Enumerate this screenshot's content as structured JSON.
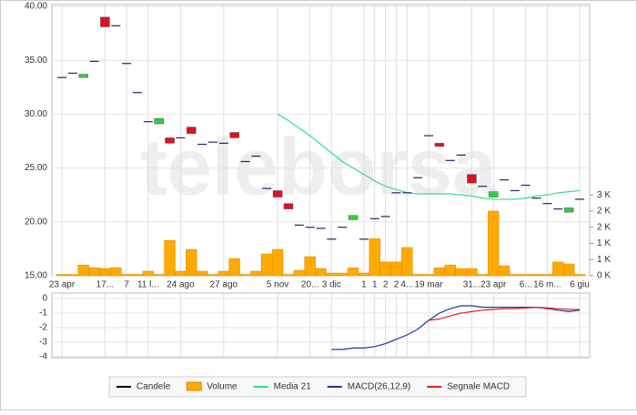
{
  "chart_data": [
    {
      "type": "candlestick",
      "watermark": "teleborsa",
      "categories": [
        "23 apr",
        null,
        null,
        null,
        "17...",
        null,
        "7",
        null,
        "11 l...",
        null,
        null,
        "24 ago",
        null,
        null,
        null,
        "27 ago",
        null,
        null,
        null,
        null,
        "5 nov",
        null,
        null,
        "20...",
        null,
        "3 dic",
        null,
        null,
        "1",
        "1",
        "2",
        "2",
        "4...",
        null,
        "19 mar",
        null,
        null,
        null,
        "31...",
        null,
        "23 apr",
        null,
        null,
        "6...",
        null,
        "16 m...",
        null,
        null,
        "6 giu"
      ],
      "ylim": [
        15,
        40
      ],
      "yticks": [
        {
          "value": 15,
          "label": "15.00"
        },
        {
          "value": 20,
          "label": "20.00"
        },
        {
          "value": 25,
          "label": "25.00"
        },
        {
          "value": 30,
          "label": "30.00"
        },
        {
          "value": 35,
          "label": "35.00"
        },
        {
          "value": 40,
          "label": "40.00"
        }
      ],
      "y2lim": [
        0,
        10000
      ],
      "y2ticks": [
        {
          "value": 0,
          "label": "0 K"
        },
        {
          "value": 600,
          "label": "1 K"
        },
        {
          "value": 1200,
          "label": "1 K"
        },
        {
          "value": 1800,
          "label": "2 K"
        },
        {
          "value": 2400,
          "label": "2 K"
        },
        {
          "value": 3000,
          "label": "3 K"
        }
      ],
      "grid": true,
      "up_color": "#33cc44",
      "down_color": "#dd1122",
      "series": [
        {
          "name": "Candele",
          "type": "candlestick",
          "color": "#1a2a66",
          "open": [
            33.4,
            33.8,
            33.4,
            34.9,
            39.0,
            38.2,
            34.7,
            32.0,
            29.3,
            29.1,
            27.8,
            27.8,
            28.8,
            27.2,
            27.4,
            27.3,
            28.3,
            25.6,
            26.1,
            23.1,
            22.9,
            21.7,
            19.7,
            19.5,
            19.4,
            18.4,
            19.5,
            20.2,
            18.4,
            20.3,
            20.5,
            22.7,
            22.7,
            24.1,
            28.0,
            27.3,
            25.7,
            26.2,
            24.4,
            23.3,
            22.3,
            23.9,
            22.9,
            23.4,
            22.2,
            21.7,
            21.2,
            20.9,
            22.1
          ],
          "close": [
            33.4,
            33.8,
            33.7,
            34.9,
            38.1,
            38.2,
            34.7,
            32.0,
            29.3,
            29.6,
            27.3,
            27.8,
            28.2,
            27.2,
            27.4,
            27.3,
            27.8,
            25.6,
            26.1,
            23.1,
            22.3,
            21.2,
            19.7,
            19.5,
            19.4,
            18.4,
            19.5,
            20.6,
            18.4,
            20.3,
            20.5,
            22.7,
            22.7,
            24.1,
            28.0,
            27.0,
            25.7,
            26.2,
            23.6,
            23.3,
            22.8,
            23.9,
            22.9,
            23.4,
            22.2,
            21.7,
            21.2,
            21.3,
            22.1
          ]
        },
        {
          "name": "Volume",
          "type": "bar",
          "axis": "y2",
          "color": "#ffaa00",
          "values": [
            50,
            50,
            400,
            300,
            270,
            300,
            50,
            50,
            170,
            50,
            1310,
            170,
            980,
            170,
            50,
            170,
            640,
            50,
            170,
            810,
            980,
            50,
            200,
            710,
            270,
            100,
            100,
            300,
            100,
            1380,
            510,
            510,
            1050,
            50,
            50,
            300,
            400,
            270,
            270,
            50,
            2400,
            370,
            50,
            50,
            50,
            50,
            510,
            440,
            50
          ]
        },
        {
          "name": "Media 21",
          "type": "line",
          "color": "#33dd88",
          "values": [
            null,
            null,
            null,
            null,
            null,
            null,
            null,
            null,
            null,
            null,
            null,
            null,
            null,
            null,
            null,
            null,
            null,
            null,
            null,
            null,
            30.0,
            29.4,
            28.7,
            28.0,
            27.2,
            26.4,
            25.6,
            25.0,
            24.4,
            23.8,
            23.3,
            23.0,
            22.7,
            22.6,
            22.6,
            22.6,
            22.6,
            22.5,
            22.4,
            22.2,
            22.1,
            22.1,
            22.1,
            22.2,
            22.4,
            22.5,
            22.7,
            22.8,
            22.9
          ]
        }
      ]
    },
    {
      "type": "line",
      "ylim": [
        -4,
        0
      ],
      "yticks": [
        -4,
        -3,
        -2,
        -1,
        0
      ],
      "grid": true,
      "series": [
        {
          "name": "MACD(26,12,9)",
          "type": "line",
          "color": "#2233aa",
          "values": [
            null,
            null,
            null,
            null,
            null,
            null,
            null,
            null,
            null,
            null,
            null,
            null,
            null,
            null,
            null,
            null,
            null,
            null,
            null,
            null,
            null,
            null,
            null,
            null,
            null,
            -3.5,
            -3.5,
            -3.4,
            -3.4,
            -3.3,
            -3.1,
            -2.8,
            -2.5,
            -2.1,
            -1.5,
            -1.0,
            -0.7,
            -0.5,
            -0.5,
            -0.6,
            -0.6,
            -0.6,
            -0.6,
            -0.6,
            -0.6,
            -0.7,
            -0.8,
            -0.9,
            -0.8
          ]
        },
        {
          "name": "Segnale MACD",
          "type": "line",
          "color": "#dd2222",
          "values": [
            null,
            null,
            null,
            null,
            null,
            null,
            null,
            null,
            null,
            null,
            null,
            null,
            null,
            null,
            null,
            null,
            null,
            null,
            null,
            null,
            null,
            null,
            null,
            null,
            null,
            null,
            null,
            null,
            null,
            null,
            null,
            null,
            null,
            null,
            -1.5,
            -1.4,
            -1.2,
            -1.0,
            -0.9,
            -0.8,
            -0.75,
            -0.7,
            -0.7,
            -0.65,
            -0.6,
            -0.65,
            -0.7,
            -0.75,
            -0.75
          ]
        }
      ]
    }
  ]
}
